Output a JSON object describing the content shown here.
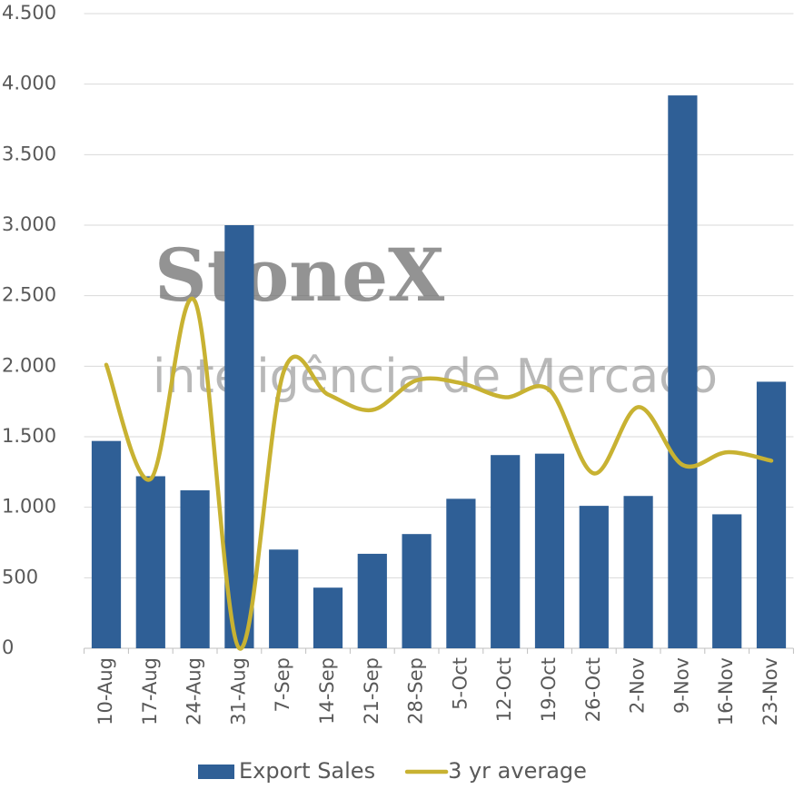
{
  "chart_data": {
    "type": "bar-line",
    "watermark": {
      "brand": "StoneX",
      "tagline": "inteligência de Mercado"
    },
    "categories": [
      "10-Aug",
      "17-Aug",
      "24-Aug",
      "31-Aug",
      "7-Sep",
      "14-Sep",
      "21-Sep",
      "28-Sep",
      "5-Oct",
      "12-Oct",
      "19-Oct",
      "26-Oct",
      "2-Nov",
      "9-Nov",
      "16-Nov",
      "23-Nov"
    ],
    "series": [
      {
        "name": "Export Sales",
        "type": "bar",
        "color": "#2f5f96",
        "values": [
          1470,
          1220,
          1120,
          3000,
          700,
          430,
          670,
          810,
          1060,
          1370,
          1380,
          1010,
          1080,
          3920,
          950,
          1890
        ]
      },
      {
        "name": "3 yr average",
        "type": "line",
        "color": "#c8b232",
        "values": [
          2010,
          1200,
          2460,
          0,
          1960,
          1800,
          1690,
          1900,
          1880,
          1780,
          1830,
          1240,
          1710,
          1300,
          1390,
          1330
        ]
      }
    ],
    "ylim": [
      0,
      4500
    ],
    "yticks": [
      0,
      500,
      {
        "value": 1000,
        "label": "1.000"
      },
      {
        "value": 1500,
        "label": "1.500"
      },
      {
        "value": 2000,
        "label": "2.000"
      },
      {
        "value": 2500,
        "label": "2.500"
      },
      {
        "value": 3000,
        "label": "3.000"
      },
      {
        "value": 3500,
        "label": "3.500"
      },
      {
        "value": 4000,
        "label": "4.000"
      },
      {
        "value": 4500,
        "label": "4.500"
      }
    ],
    "grid": true,
    "legend": "bottom"
  }
}
